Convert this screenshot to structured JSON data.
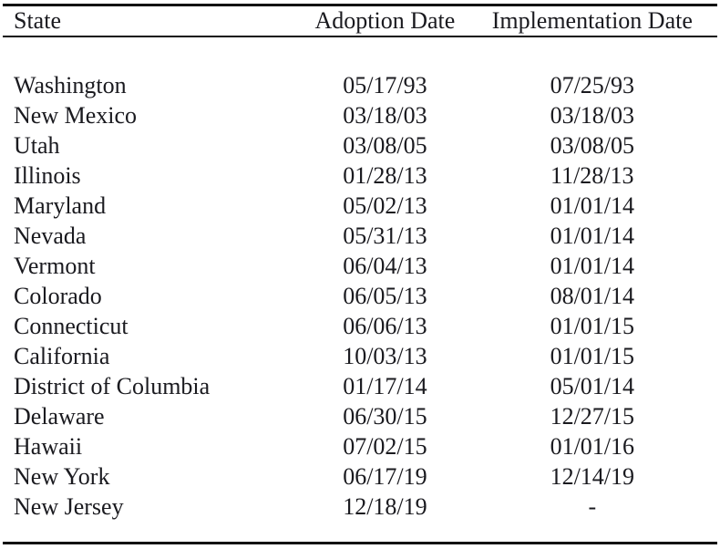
{
  "table": {
    "columns": [
      {
        "key": "state",
        "label": "State"
      },
      {
        "key": "adoption",
        "label": "Adoption Date"
      },
      {
        "key": "implementation",
        "label": "Implementation Date"
      }
    ],
    "rows": [
      {
        "state": "Washington",
        "adoption": "05/17/93",
        "implementation": "07/25/93"
      },
      {
        "state": "New Mexico",
        "adoption": "03/18/03",
        "implementation": "03/18/03"
      },
      {
        "state": "Utah",
        "adoption": "03/08/05",
        "implementation": "03/08/05"
      },
      {
        "state": "Illinois",
        "adoption": "01/28/13",
        "implementation": "11/28/13"
      },
      {
        "state": "Maryland",
        "adoption": "05/02/13",
        "implementation": "01/01/14"
      },
      {
        "state": "Nevada",
        "adoption": "05/31/13",
        "implementation": "01/01/14"
      },
      {
        "state": "Vermont",
        "adoption": "06/04/13",
        "implementation": "01/01/14"
      },
      {
        "state": "Colorado",
        "adoption": "06/05/13",
        "implementation": "08/01/14"
      },
      {
        "state": "Connecticut",
        "adoption": "06/06/13",
        "implementation": "01/01/15"
      },
      {
        "state": "California",
        "adoption": "10/03/13",
        "implementation": "01/01/15"
      },
      {
        "state": "District of Columbia",
        "adoption": "01/17/14",
        "implementation": "05/01/14"
      },
      {
        "state": "Delaware",
        "adoption": "06/30/15",
        "implementation": "12/27/15"
      },
      {
        "state": "Hawaii",
        "adoption": "07/02/15",
        "implementation": "01/01/16"
      },
      {
        "state": "New York",
        "adoption": "06/17/19",
        "implementation": "12/14/19"
      },
      {
        "state": "New Jersey",
        "adoption": "12/18/19",
        "implementation": "-"
      }
    ]
  },
  "colors": {
    "text": "#1a1a1f",
    "rule": "#121212",
    "background": "#ffffff"
  }
}
